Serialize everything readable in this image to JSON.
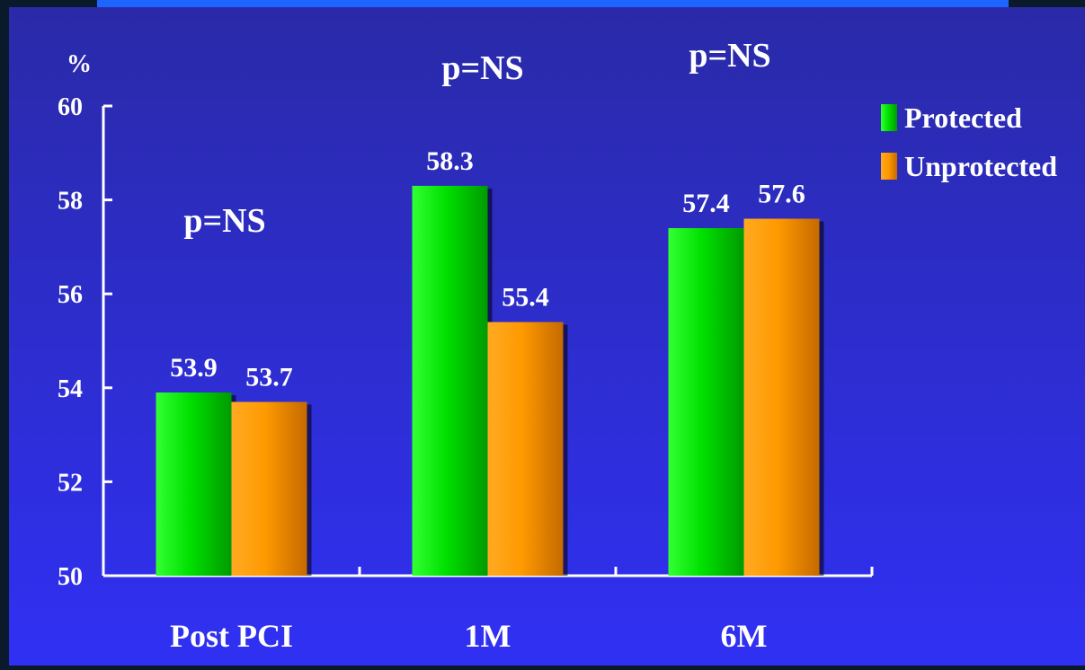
{
  "chart_data": {
    "type": "bar",
    "categories": [
      "Post PCI",
      "1M",
      "6M"
    ],
    "series": [
      {
        "name": "Protected",
        "values": [
          53.9,
          58.3,
          57.4
        ],
        "color": "#00e000"
      },
      {
        "name": "Unprotected",
        "values": [
          53.7,
          55.4,
          57.6
        ],
        "color": "#ff9900"
      }
    ],
    "ylabel": "%",
    "ylim": [
      50,
      60
    ],
    "yticks": [
      "50",
      "52",
      "54",
      "56",
      "58",
      "60"
    ],
    "annotations": [
      "p=NS",
      "p=NS",
      "p=NS"
    ],
    "legend_position": "top-right",
    "grid": false
  },
  "colors": {
    "background_top": "#2a2aa8",
    "background_bottom": "#2f2ff5",
    "top_strip": "#1e64ff",
    "frame": "#0a1a2a",
    "text": "#ffffff"
  }
}
